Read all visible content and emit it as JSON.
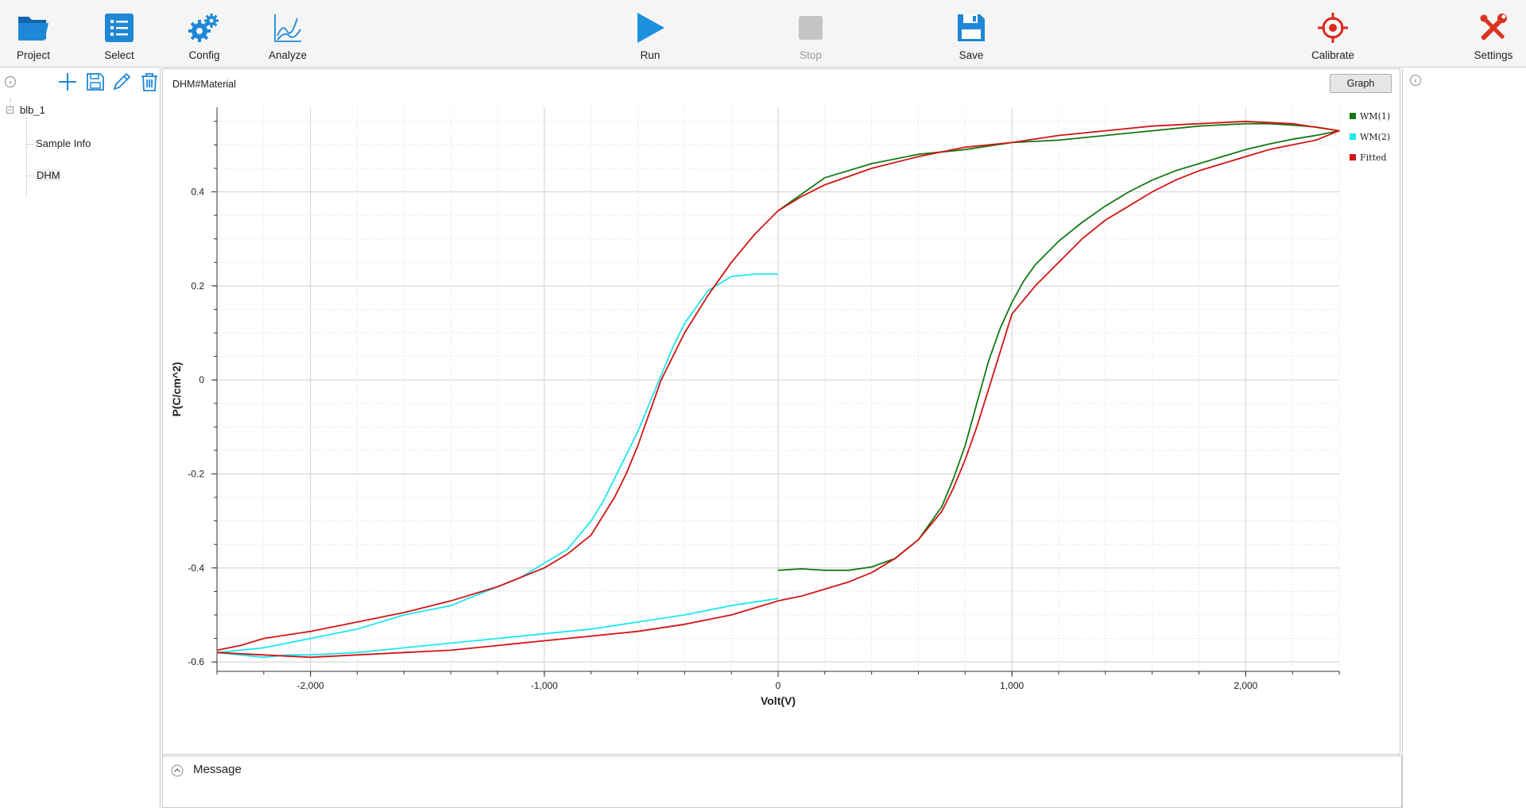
{
  "toolbar": {
    "items": [
      {
        "label": "Project",
        "icon": "folder-icon",
        "enabled": true
      },
      {
        "label": "Select",
        "icon": "list-icon",
        "enabled": true
      },
      {
        "label": "Config",
        "icon": "gears-icon",
        "enabled": true
      },
      {
        "label": "Analyze",
        "icon": "chart-line-icon",
        "enabled": true
      },
      {
        "label": "Run",
        "icon": "play-icon",
        "enabled": true
      },
      {
        "label": "Stop",
        "icon": "stop-icon",
        "enabled": false
      },
      {
        "label": "Save",
        "icon": "floppy-icon",
        "enabled": true
      },
      {
        "label": "Calibrate",
        "icon": "crosshair-icon",
        "enabled": true
      },
      {
        "label": "Settings",
        "icon": "tools-icon",
        "enabled": true
      }
    ]
  },
  "colors": {
    "accent_blue": "#1e88d6",
    "run_blue": "#1e90e0",
    "disabled_gray": "#c4c4c4",
    "calibrate_red": "#e0271f",
    "settings_red": "#d93421",
    "series_green": "#137a13",
    "series_cyan": "#1ee6ee",
    "series_red": "#d21414"
  },
  "left_panel": {
    "tree": {
      "root": "blb_1",
      "children": [
        "Sample Info",
        "DHM"
      ]
    }
  },
  "graph_panel": {
    "title": "DHM#Material",
    "graph_button": "Graph"
  },
  "message_panel": {
    "title": "Message"
  },
  "chart_data": {
    "type": "line",
    "xlabel": "Volt(V)",
    "ylabel": "P(C/cm^2)",
    "xlim": [
      -2400,
      2400
    ],
    "ylim": [
      -0.62,
      0.58
    ],
    "x_ticks": [
      -2000,
      -1000,
      0,
      1000,
      2000
    ],
    "x_tick_labels": [
      "-2,000",
      "-1,000",
      "0",
      "1,000",
      "2,000"
    ],
    "y_ticks": [
      -0.6,
      -0.4,
      -0.2,
      0,
      0.2,
      0.4
    ],
    "y_tick_labels": [
      "-0.6",
      "-0.4",
      "-0.2",
      "0",
      "0.2",
      "0.4"
    ],
    "grid": true,
    "legend_position": "top-right",
    "series": [
      {
        "name": "WM(1)",
        "color": "#137a13",
        "x": [
          0,
          100,
          200,
          300,
          400,
          500,
          600,
          700,
          750,
          800,
          850,
          900,
          950,
          1000,
          1050,
          1100,
          1200,
          1300,
          1400,
          1500,
          1600,
          1700,
          1800,
          1900,
          2000,
          2100,
          2200,
          2300,
          2400,
          2300,
          2200,
          2100,
          2000,
          1800,
          1600,
          1400,
          1200,
          1000,
          800,
          600,
          400,
          200,
          0
        ],
        "y": [
          -0.405,
          -0.402,
          -0.405,
          -0.405,
          -0.398,
          -0.38,
          -0.34,
          -0.27,
          -0.21,
          -0.14,
          -0.05,
          0.04,
          0.11,
          0.165,
          0.21,
          0.245,
          0.295,
          0.335,
          0.37,
          0.4,
          0.425,
          0.445,
          0.46,
          0.475,
          0.49,
          0.502,
          0.512,
          0.52,
          0.53,
          0.538,
          0.542,
          0.545,
          0.545,
          0.54,
          0.53,
          0.52,
          0.51,
          0.505,
          0.49,
          0.48,
          0.46,
          0.43,
          0.36
        ]
      },
      {
        "name": "WM(2)",
        "color": "#1ee6ee",
        "x": [
          0,
          -100,
          -200,
          -300,
          -400,
          -450,
          -500,
          -550,
          -600,
          -650,
          -700,
          -750,
          -800,
          -900,
          -1000,
          -1100,
          -1200,
          -1300,
          -1400,
          -1600,
          -1800,
          -2000,
          -2200,
          -2400,
          -2300,
          -2200,
          -2100,
          -2000,
          -1800,
          -1600,
          -1400,
          -1200,
          -1000,
          -800,
          -600,
          -400,
          -200,
          0
        ],
        "y": [
          0.225,
          0.225,
          0.22,
          0.19,
          0.12,
          0.07,
          0.01,
          -0.05,
          -0.11,
          -0.16,
          -0.21,
          -0.26,
          -0.3,
          -0.36,
          -0.39,
          -0.42,
          -0.44,
          -0.46,
          -0.48,
          -0.5,
          -0.53,
          -0.55,
          -0.57,
          -0.58,
          -0.585,
          -0.59,
          -0.585,
          -0.585,
          -0.58,
          -0.57,
          -0.56,
          -0.55,
          -0.54,
          -0.53,
          -0.515,
          -0.5,
          -0.48,
          -0.465
        ]
      },
      {
        "name": "Fitted",
        "color": "#d21414",
        "x": [
          -2400,
          -2300,
          -2200,
          -2000,
          -1800,
          -1600,
          -1400,
          -1200,
          -1000,
          -900,
          -800,
          -750,
          -700,
          -650,
          -600,
          -550,
          -500,
          -450,
          -400,
          -300,
          -200,
          -100,
          0,
          100,
          200,
          400,
          600,
          800,
          1000,
          1200,
          1400,
          1600,
          1800,
          2000,
          2200,
          2400,
          2300,
          2200,
          2100,
          2000,
          1900,
          1800,
          1700,
          1600,
          1500,
          1400,
          1300,
          1200,
          1100,
          1000,
          950,
          900,
          850,
          800,
          750,
          700,
          600,
          500,
          400,
          300,
          200,
          100,
          0,
          -200,
          -400,
          -600,
          -800,
          -1000,
          -1200,
          -1400,
          -1600,
          -1800,
          -2000,
          -2200,
          -2400
        ],
        "y": [
          -0.575,
          -0.565,
          -0.55,
          -0.535,
          -0.515,
          -0.495,
          -0.47,
          -0.44,
          -0.4,
          -0.37,
          -0.33,
          -0.29,
          -0.25,
          -0.2,
          -0.14,
          -0.07,
          0.0,
          0.05,
          0.1,
          0.18,
          0.25,
          0.31,
          0.36,
          0.39,
          0.415,
          0.45,
          0.475,
          0.495,
          0.505,
          0.52,
          0.53,
          0.54,
          0.545,
          0.55,
          0.545,
          0.53,
          0.51,
          0.5,
          0.49,
          0.475,
          0.46,
          0.445,
          0.425,
          0.4,
          0.37,
          0.34,
          0.3,
          0.25,
          0.2,
          0.14,
          0.06,
          -0.02,
          -0.1,
          -0.17,
          -0.23,
          -0.28,
          -0.34,
          -0.38,
          -0.41,
          -0.43,
          -0.445,
          -0.46,
          -0.47,
          -0.5,
          -0.52,
          -0.535,
          -0.545,
          -0.555,
          -0.565,
          -0.575,
          -0.58,
          -0.585,
          -0.59,
          -0.585,
          -0.58
        ]
      }
    ]
  }
}
